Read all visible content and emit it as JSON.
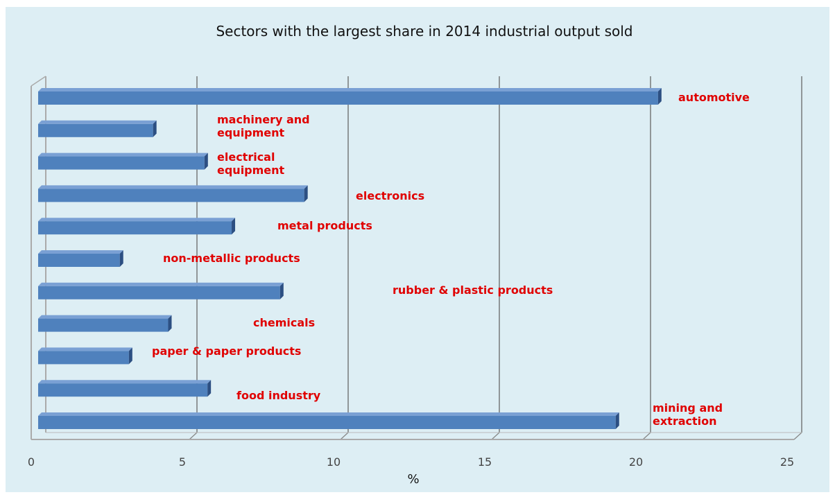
{
  "chart_data": {
    "type": "bar",
    "orientation": "horizontal",
    "title": "Sectors with the largest share in 2014 industrial output sold",
    "xlabel": "%",
    "ylabel": "",
    "xlim": [
      0,
      25
    ],
    "x_ticks": [
      "0",
      "5",
      "10",
      "15",
      "20",
      "25"
    ],
    "grid": true,
    "legend": "none",
    "bar_color": "#4f81bd",
    "label_color": "#e00000",
    "background_color": "#ddeef4",
    "categories": [
      [
        "automotive"
      ],
      [
        "machinery and",
        "equipment"
      ],
      [
        "electrical",
        "equipment"
      ],
      [
        "electronics"
      ],
      [
        "metal products"
      ],
      [
        "non-metallic products"
      ],
      [
        "rubber & plastic products"
      ],
      [
        "chemicals"
      ],
      [
        "paper & paper products"
      ],
      [
        "food industry"
      ],
      [
        "mining and",
        "extraction"
      ]
    ],
    "values": [
      20.5,
      3.8,
      5.5,
      8.8,
      6.4,
      2.7,
      8.0,
      4.3,
      3.0,
      5.6,
      19.1
    ]
  }
}
